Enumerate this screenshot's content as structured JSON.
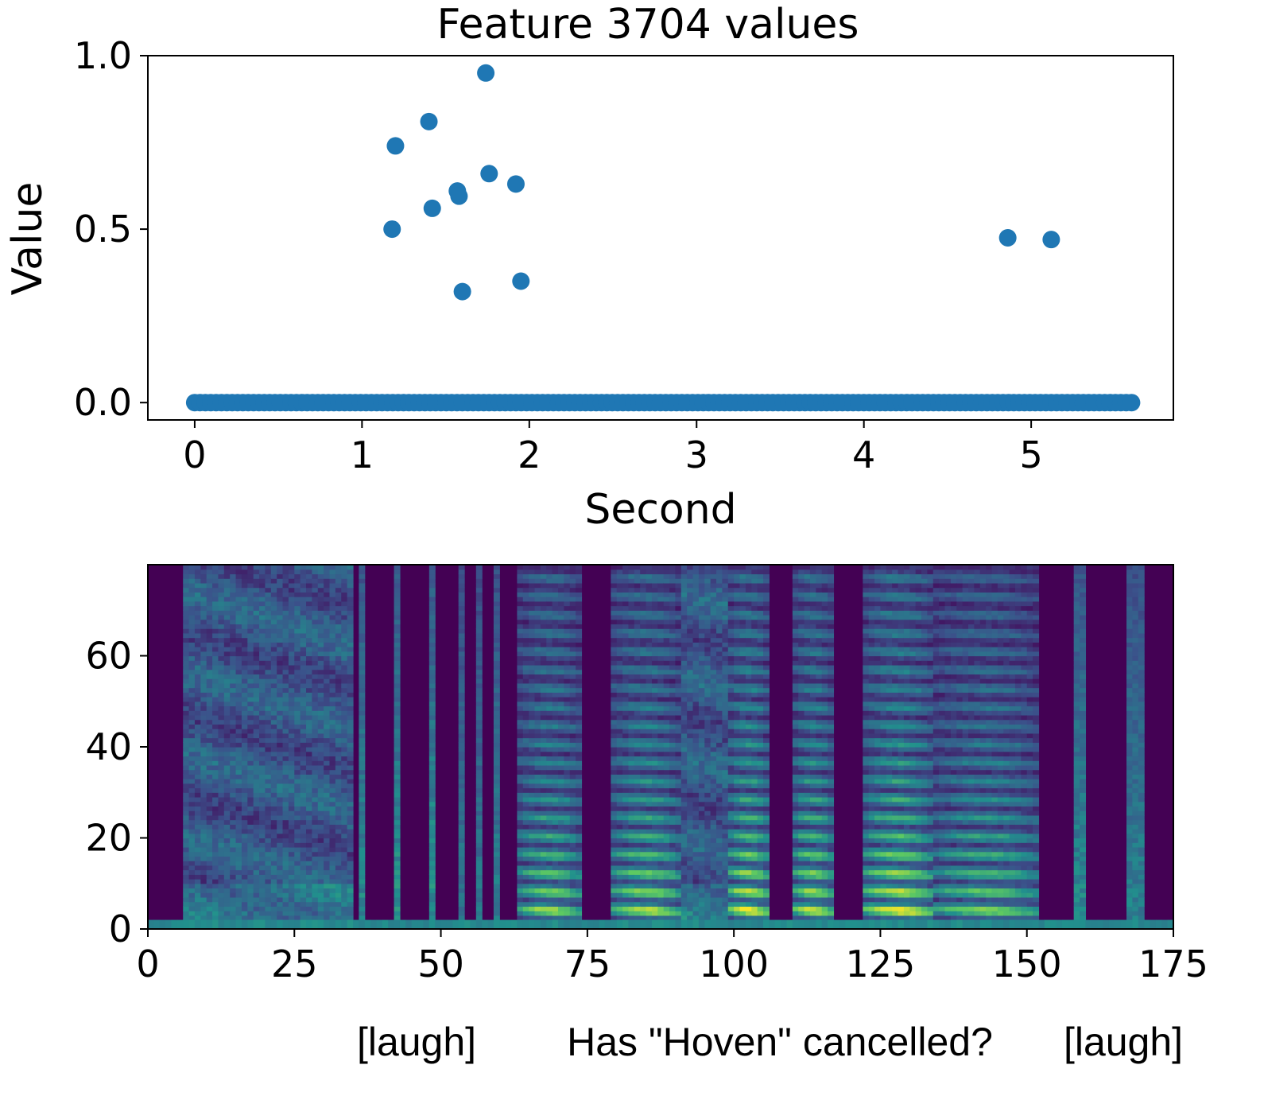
{
  "chart_data": [
    {
      "type": "scatter",
      "title": "Feature 3704 values",
      "xlabel": "Second",
      "ylabel": "Value",
      "xlim": [
        -0.28,
        5.85
      ],
      "ylim": [
        -0.05,
        1.0
      ],
      "xticks": [
        "0",
        "1",
        "2",
        "3",
        "4",
        "5"
      ],
      "yticks": [
        "0.0",
        "0.5",
        "1.0"
      ],
      "color": "#1f77b4",
      "zero_range": [
        0.0,
        5.6
      ],
      "zero_step": 0.032,
      "points": [
        {
          "x": 1.18,
          "y": 0.5
        },
        {
          "x": 1.2,
          "y": 0.74
        },
        {
          "x": 1.4,
          "y": 0.81
        },
        {
          "x": 1.42,
          "y": 0.56
        },
        {
          "x": 1.57,
          "y": 0.61
        },
        {
          "x": 1.58,
          "y": 0.595
        },
        {
          "x": 1.6,
          "y": 0.32
        },
        {
          "x": 1.74,
          "y": 0.95
        },
        {
          "x": 1.76,
          "y": 0.66
        },
        {
          "x": 1.92,
          "y": 0.63
        },
        {
          "x": 1.95,
          "y": 0.35
        },
        {
          "x": 4.86,
          "y": 0.475
        },
        {
          "x": 5.12,
          "y": 0.47
        }
      ]
    },
    {
      "type": "heatmap",
      "xlim": [
        0,
        175
      ],
      "ylim": [
        0,
        80
      ],
      "xticks": [
        "0",
        "25",
        "50",
        "75",
        "100",
        "125",
        "150",
        "175"
      ],
      "yticks": [
        "0",
        "20",
        "40",
        "60"
      ],
      "colormap": [
        "#440154",
        "#3b528b",
        "#21908d",
        "#5dc962",
        "#fde725"
      ],
      "silent_ranges": [
        [
          0,
          6
        ],
        [
          36,
          38
        ],
        [
          39,
          42
        ],
        [
          43,
          45
        ],
        [
          46,
          48
        ],
        [
          49,
          53
        ],
        [
          54,
          56
        ],
        [
          57,
          59
        ],
        [
          60,
          63
        ],
        [
          74,
          79
        ],
        [
          106,
          110
        ],
        [
          117,
          119
        ],
        [
          119,
          122
        ],
        [
          152,
          175
        ]
      ],
      "segments": [
        {
          "start": 6,
          "end": 35,
          "energy": 0.45,
          "kind": "noise"
        },
        {
          "start": 36,
          "end": 37,
          "energy": 0.7,
          "kind": "click"
        },
        {
          "start": 42,
          "end": 43,
          "energy": 0.75,
          "kind": "click"
        },
        {
          "start": 48,
          "end": 49,
          "energy": 0.75,
          "kind": "click"
        },
        {
          "start": 53,
          "end": 54,
          "energy": 0.6,
          "kind": "click"
        },
        {
          "start": 56,
          "end": 57,
          "energy": 0.6,
          "kind": "click"
        },
        {
          "start": 59,
          "end": 60,
          "energy": 0.65,
          "kind": "click"
        },
        {
          "start": 63,
          "end": 74,
          "energy": 0.85,
          "kind": "voiced"
        },
        {
          "start": 79,
          "end": 91,
          "energy": 0.9,
          "kind": "voiced"
        },
        {
          "start": 91,
          "end": 99,
          "energy": 0.5,
          "kind": "noise"
        },
        {
          "start": 99,
          "end": 106,
          "energy": 1.0,
          "kind": "voiced"
        },
        {
          "start": 110,
          "end": 117,
          "energy": 0.95,
          "kind": "voiced"
        },
        {
          "start": 122,
          "end": 134,
          "energy": 1.0,
          "kind": "voiced"
        },
        {
          "start": 134,
          "end": 152,
          "energy": 0.8,
          "kind": "voiced"
        },
        {
          "start": 158,
          "end": 160,
          "energy": 0.7,
          "kind": "click"
        },
        {
          "start": 167,
          "end": 170,
          "energy": 0.65,
          "kind": "click"
        }
      ]
    }
  ],
  "captions": {
    "laugh_left": "[laugh]",
    "utterance": "Has \"Hoven\" cancelled?",
    "laugh_right": "[laugh]"
  }
}
